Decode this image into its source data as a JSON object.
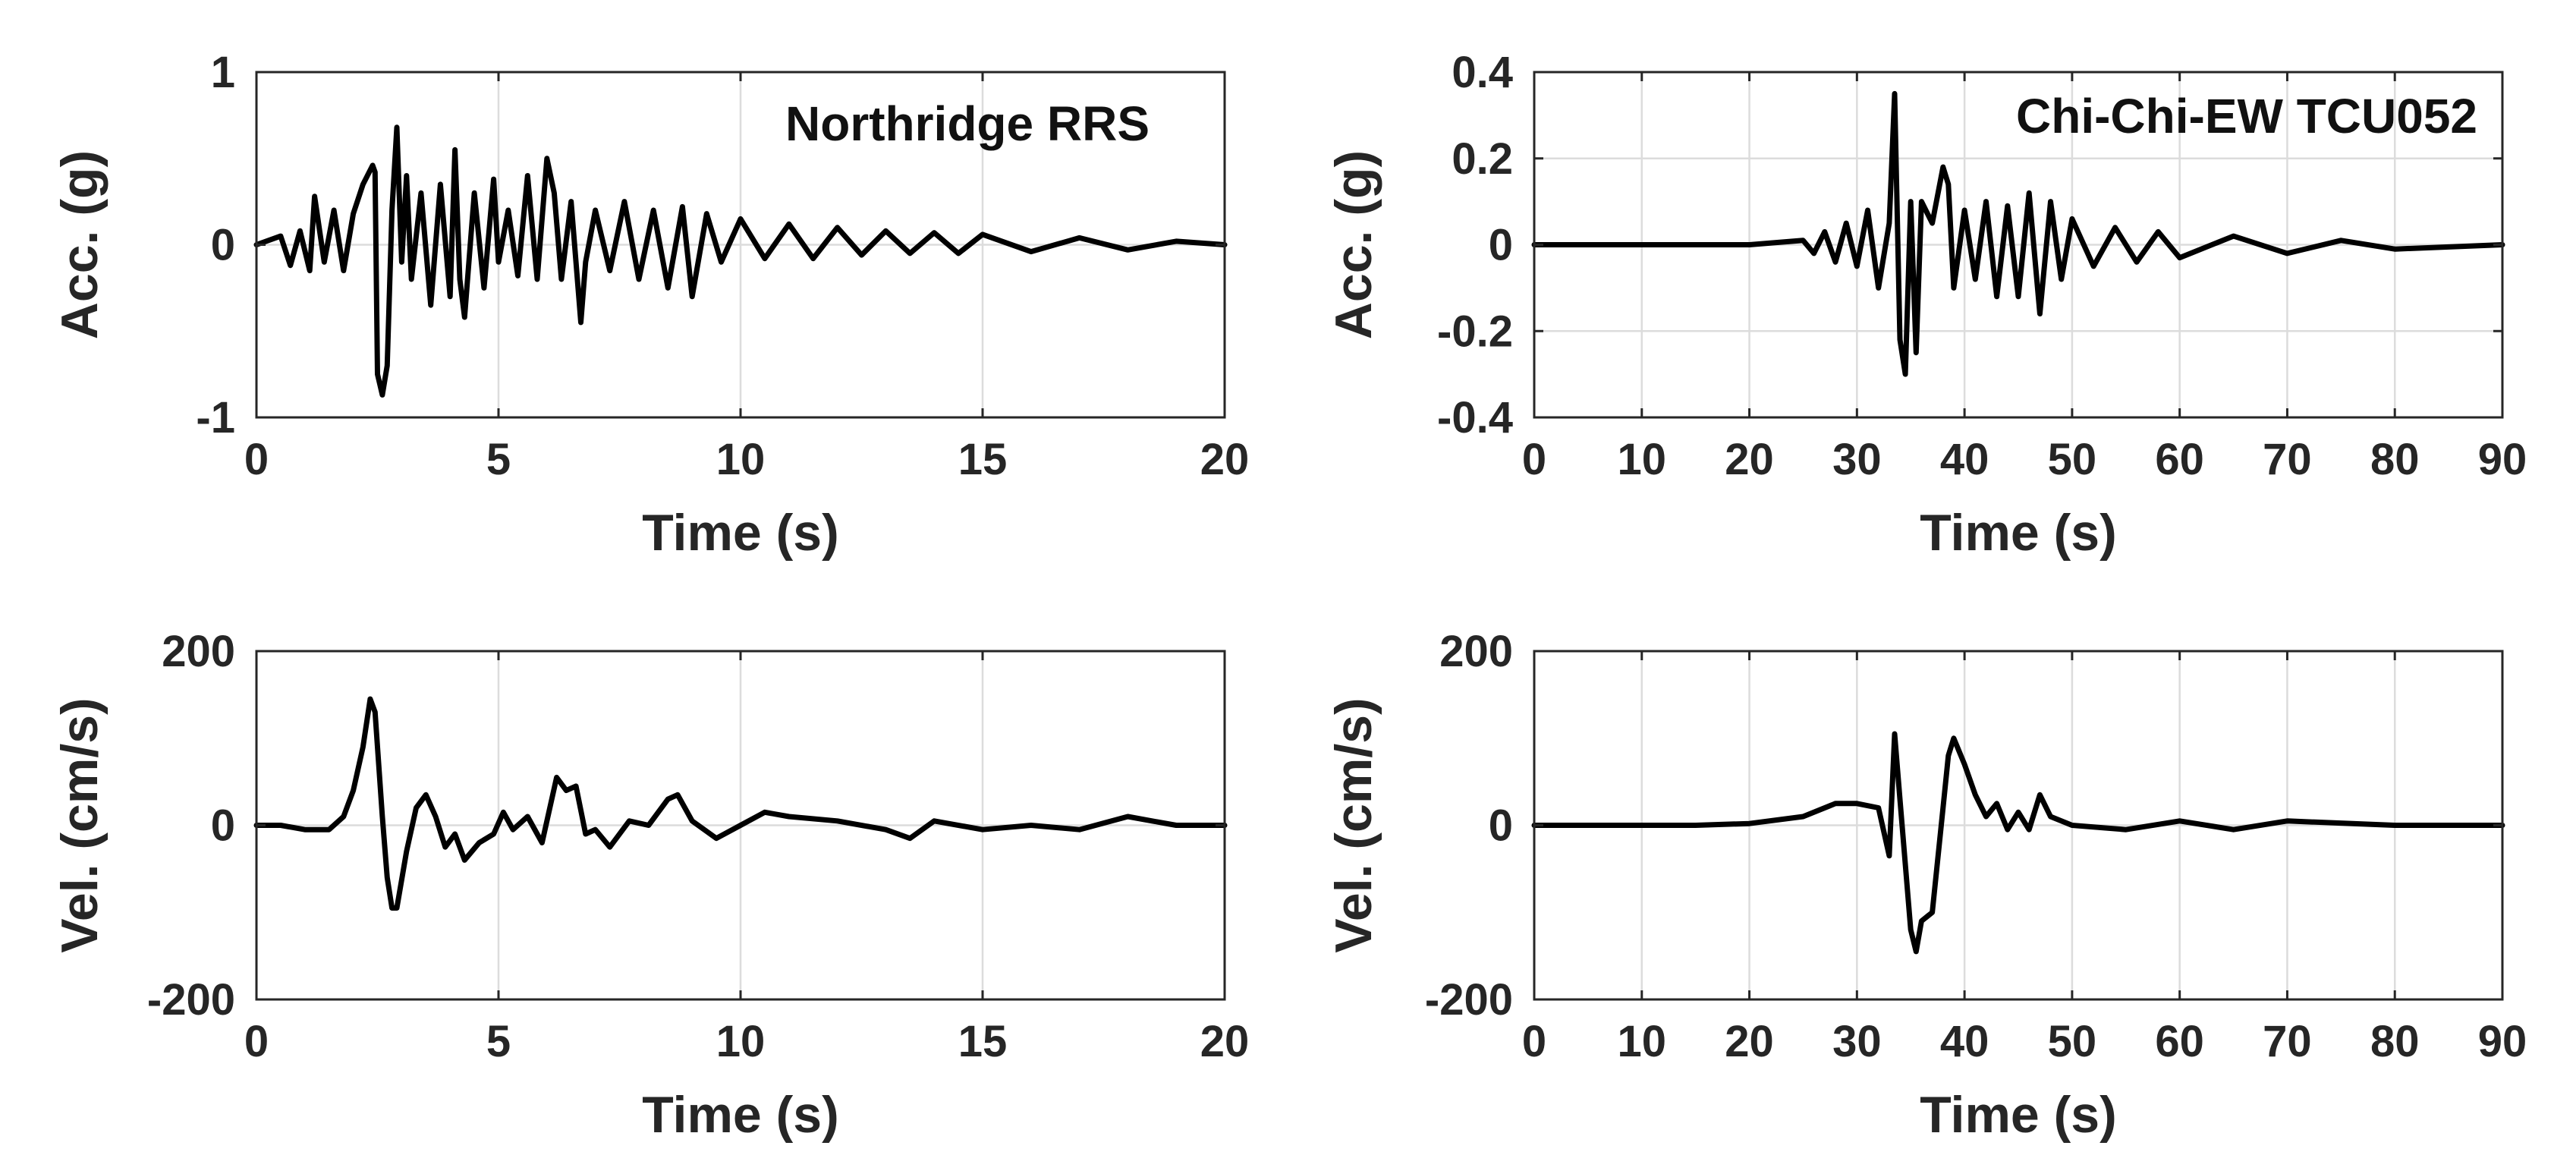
{
  "chart_data": [
    {
      "type": "line",
      "annotation": "Northridge RRS",
      "xlabel": "Time (s)",
      "ylabel": "Acc. (g)",
      "xlim": [
        0,
        20
      ],
      "ylim": [
        -1,
        1
      ],
      "xticks": [
        0,
        5,
        10,
        15,
        20
      ],
      "yticks": [
        -1,
        0,
        1
      ],
      "xtick_labels": [
        "0",
        "5",
        "10",
        "15",
        "20"
      ],
      "ytick_labels": [
        "-1",
        "0",
        "1"
      ],
      "grid": true,
      "series": [
        {
          "x": [
            0,
            0.5,
            0.7,
            0.9,
            1.1,
            1.2,
            1.4,
            1.6,
            1.8,
            2.0,
            2.2,
            2.4,
            2.45,
            2.5,
            2.6,
            2.7,
            2.8,
            2.9,
            3.0,
            3.1,
            3.2,
            3.4,
            3.6,
            3.8,
            4.0,
            4.1,
            4.2,
            4.3,
            4.5,
            4.7,
            4.9,
            5.0,
            5.2,
            5.4,
            5.6,
            5.8,
            6.0,
            6.15,
            6.3,
            6.5,
            6.7,
            6.8,
            7.0,
            7.3,
            7.6,
            7.9,
            8.2,
            8.5,
            8.8,
            9.0,
            9.3,
            9.6,
            10.0,
            10.5,
            11.0,
            11.5,
            12.0,
            12.5,
            13.0,
            13.5,
            14.0,
            14.5,
            15.0,
            16.0,
            17.0,
            18.0,
            19.0,
            20.0
          ],
          "y": [
            0.0,
            0.05,
            -0.12,
            0.08,
            -0.15,
            0.28,
            -0.1,
            0.2,
            -0.15,
            0.18,
            0.35,
            0.46,
            0.42,
            -0.75,
            -0.87,
            -0.7,
            0.2,
            0.68,
            -0.1,
            0.4,
            -0.2,
            0.3,
            -0.35,
            0.35,
            -0.3,
            0.55,
            -0.2,
            -0.42,
            0.3,
            -0.25,
            0.38,
            -0.1,
            0.2,
            -0.18,
            0.4,
            -0.2,
            0.5,
            0.3,
            -0.2,
            0.25,
            -0.45,
            -0.1,
            0.2,
            -0.15,
            0.25,
            -0.2,
            0.2,
            -0.25,
            0.22,
            -0.3,
            0.18,
            -0.1,
            0.15,
            -0.08,
            0.12,
            -0.08,
            0.1,
            -0.06,
            0.08,
            -0.05,
            0.07,
            -0.05,
            0.06,
            -0.04,
            0.04,
            -0.03,
            0.02,
            0.0
          ]
        }
      ]
    },
    {
      "type": "line",
      "annotation": "Chi-Chi-EW TCU052",
      "xlabel": "Time (s)",
      "ylabel": "Acc. (g)",
      "xlim": [
        0,
        90
      ],
      "ylim": [
        -0.4,
        0.4
      ],
      "xticks": [
        0,
        10,
        20,
        30,
        40,
        50,
        60,
        70,
        80,
        90
      ],
      "yticks": [
        -0.4,
        -0.2,
        0,
        0.2,
        0.4
      ],
      "xtick_labels": [
        "0",
        "10",
        "20",
        "30",
        "40",
        "50",
        "60",
        "70",
        "80",
        "90"
      ],
      "ytick_labels": [
        "-0.4",
        "-0.2",
        "0",
        "0.2",
        "0.4"
      ],
      "grid": true,
      "series": [
        {
          "x": [
            0,
            20,
            25,
            26,
            27,
            28,
            29,
            30,
            31,
            32,
            33,
            33.5,
            34,
            34.5,
            35,
            35.5,
            36,
            37,
            38,
            38.5,
            39,
            40,
            41,
            42,
            43,
            44,
            45,
            46,
            47,
            48,
            49,
            50,
            52,
            54,
            56,
            58,
            60,
            65,
            70,
            75,
            80,
            90
          ],
          "y": [
            0,
            0,
            0.01,
            -0.02,
            0.03,
            -0.04,
            0.05,
            -0.05,
            0.08,
            -0.1,
            0.05,
            0.35,
            -0.22,
            -0.3,
            0.1,
            -0.25,
            0.1,
            0.05,
            0.18,
            0.14,
            -0.1,
            0.08,
            -0.08,
            0.1,
            -0.12,
            0.09,
            -0.12,
            0.12,
            -0.16,
            0.1,
            -0.08,
            0.06,
            -0.05,
            0.04,
            -0.04,
            0.03,
            -0.03,
            0.02,
            -0.02,
            0.01,
            -0.01,
            0
          ]
        }
      ]
    },
    {
      "type": "line",
      "xlabel": "Time (s)",
      "ylabel": "Vel. (cm/s)",
      "xlim": [
        0,
        20
      ],
      "ylim": [
        -200,
        200
      ],
      "xticks": [
        0,
        5,
        10,
        15,
        20
      ],
      "yticks": [
        -200,
        0,
        200
      ],
      "xtick_labels": [
        "0",
        "5",
        "10",
        "15",
        "20"
      ],
      "ytick_labels": [
        "-200",
        "0",
        "200"
      ],
      "grid": true,
      "series": [
        {
          "x": [
            0,
            0.5,
            1.0,
            1.5,
            1.8,
            2.0,
            2.2,
            2.35,
            2.45,
            2.6,
            2.7,
            2.8,
            2.9,
            3.1,
            3.3,
            3.5,
            3.7,
            3.9,
            4.1,
            4.3,
            4.6,
            4.9,
            5.1,
            5.3,
            5.6,
            5.9,
            6.2,
            6.4,
            6.6,
            6.8,
            7.0,
            7.3,
            7.7,
            8.1,
            8.5,
            8.7,
            9.0,
            9.5,
            10.0,
            10.5,
            11.0,
            12.0,
            13.0,
            13.5,
            14.0,
            15.0,
            16.0,
            17.0,
            18.0,
            18.5,
            19.0,
            20.0
          ],
          "y": [
            0,
            0,
            -5,
            -5,
            10,
            40,
            90,
            145,
            130,
            10,
            -60,
            -95,
            -95,
            -30,
            20,
            35,
            10,
            -25,
            -10,
            -40,
            -20,
            -10,
            15,
            -5,
            10,
            -20,
            55,
            40,
            45,
            -10,
            -5,
            -25,
            5,
            0,
            30,
            35,
            5,
            -15,
            0,
            15,
            10,
            5,
            -5,
            -15,
            5,
            -5,
            0,
            -5,
            10,
            5,
            0,
            0
          ]
        }
      ]
    },
    {
      "type": "line",
      "xlabel": "Time (s)",
      "ylabel": "Vel. (cm/s)",
      "xlim": [
        0,
        90
      ],
      "ylim": [
        -200,
        200
      ],
      "xticks": [
        0,
        10,
        20,
        30,
        40,
        50,
        60,
        70,
        80,
        90
      ],
      "yticks": [
        -200,
        0,
        200
      ],
      "xtick_labels": [
        "0",
        "10",
        "20",
        "30",
        "40",
        "50",
        "60",
        "70",
        "80",
        "90"
      ],
      "ytick_labels": [
        "-200",
        "0",
        "200"
      ],
      "grid": true,
      "series": [
        {
          "x": [
            0,
            15,
            20,
            25,
            28,
            30,
            32,
            33,
            33.5,
            34,
            35,
            35.5,
            36,
            37,
            38,
            38.5,
            39,
            40,
            41,
            42,
            43,
            44,
            45,
            46,
            47,
            48,
            50,
            55,
            60,
            65,
            70,
            80,
            90
          ],
          "y": [
            0,
            0,
            2,
            10,
            25,
            25,
            20,
            -35,
            105,
            30,
            -120,
            -145,
            -110,
            -100,
            20,
            80,
            100,
            70,
            35,
            10,
            25,
            -5,
            15,
            -5,
            35,
            10,
            0,
            -5,
            5,
            -5,
            5,
            0,
            0
          ]
        }
      ]
    }
  ]
}
